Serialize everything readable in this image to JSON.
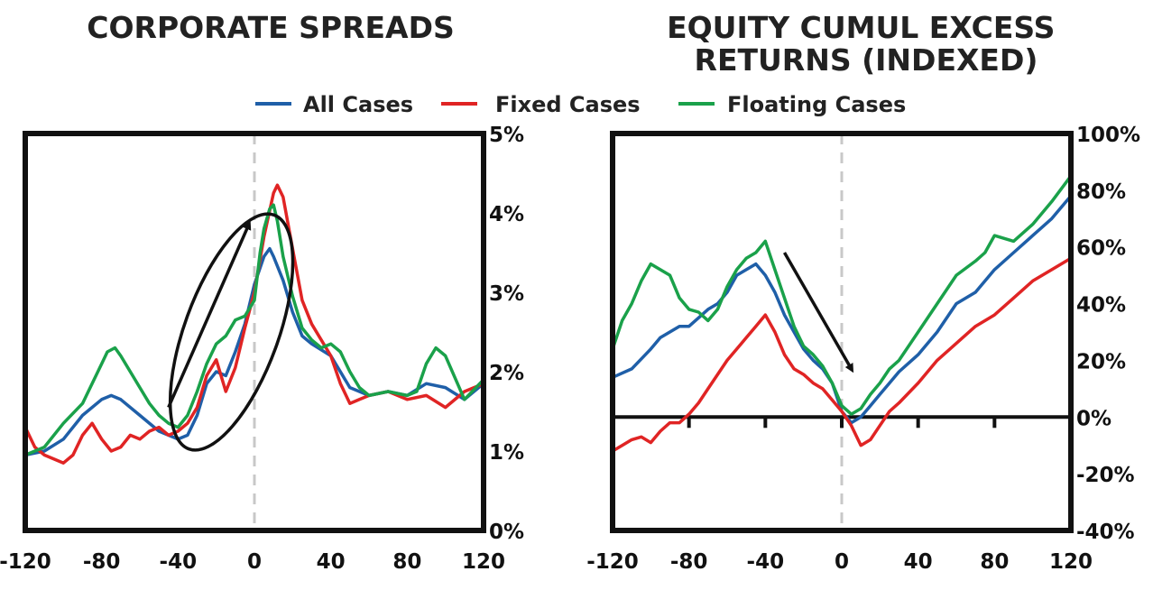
{
  "legend": [
    {
      "name": "All Cases",
      "color": "#1f5fa8"
    },
    {
      "name": "Fixed Cases",
      "color": "#e02424"
    },
    {
      "name": "Floating Cases",
      "color": "#1aa14a"
    }
  ],
  "chart_data": [
    {
      "type": "line",
      "title": "CORPORATE SPREADS",
      "xlim": [
        -120,
        120
      ],
      "ylim": [
        0,
        5
      ],
      "x_ticks": [
        "-120",
        "-80",
        "-40",
        "0",
        "40",
        "80",
        "120"
      ],
      "y_ticks": [
        "0%",
        "1%",
        "2%",
        "3%",
        "4%",
        "5%"
      ],
      "y_axis_side": "right",
      "reference_line_x": 0,
      "series": [
        {
          "name": "All Cases",
          "color": "#1f5fa8",
          "x": [
            -120,
            -110,
            -100,
            -90,
            -80,
            -75,
            -70,
            -60,
            -50,
            -40,
            -35,
            -30,
            -25,
            -20,
            -15,
            -10,
            -5,
            0,
            5,
            8,
            10,
            15,
            20,
            25,
            30,
            40,
            50,
            60,
            70,
            80,
            90,
            100,
            110,
            120
          ],
          "y": [
            0.95,
            1.0,
            1.15,
            1.45,
            1.65,
            1.7,
            1.65,
            1.45,
            1.25,
            1.15,
            1.2,
            1.45,
            1.85,
            2.0,
            1.95,
            2.25,
            2.6,
            3.1,
            3.45,
            3.55,
            3.45,
            3.15,
            2.75,
            2.45,
            2.35,
            2.2,
            1.8,
            1.7,
            1.75,
            1.7,
            1.85,
            1.8,
            1.65,
            1.85
          ]
        },
        {
          "name": "Fixed Cases",
          "color": "#e02424",
          "x": [
            -120,
            -115,
            -110,
            -100,
            -95,
            -90,
            -85,
            -80,
            -75,
            -70,
            -65,
            -60,
            -55,
            -50,
            -45,
            -40,
            -35,
            -30,
            -25,
            -20,
            -15,
            -10,
            -5,
            0,
            5,
            10,
            12,
            15,
            20,
            25,
            30,
            35,
            40,
            45,
            50,
            55,
            60,
            70,
            80,
            90,
            100,
            110,
            120
          ],
          "y": [
            1.3,
            1.05,
            0.95,
            0.85,
            0.95,
            1.2,
            1.35,
            1.15,
            1.0,
            1.05,
            1.2,
            1.15,
            1.25,
            1.3,
            1.2,
            1.25,
            1.35,
            1.55,
            1.95,
            2.15,
            1.75,
            2.05,
            2.55,
            3.0,
            3.7,
            4.25,
            4.35,
            4.2,
            3.55,
            2.9,
            2.6,
            2.4,
            2.2,
            1.85,
            1.6,
            1.65,
            1.7,
            1.75,
            1.65,
            1.7,
            1.55,
            1.75,
            1.85
          ]
        },
        {
          "name": "Floating Cases",
          "color": "#1aa14a",
          "x": [
            -120,
            -110,
            -100,
            -90,
            -85,
            -80,
            -77,
            -73,
            -70,
            -65,
            -60,
            -55,
            -50,
            -45,
            -40,
            -35,
            -30,
            -25,
            -20,
            -15,
            -10,
            -5,
            0,
            3,
            5,
            8,
            10,
            12,
            15,
            20,
            25,
            30,
            35,
            40,
            45,
            50,
            55,
            60,
            70,
            80,
            85,
            90,
            95,
            100,
            110,
            120
          ],
          "y": [
            0.95,
            1.05,
            1.35,
            1.6,
            1.85,
            2.1,
            2.25,
            2.3,
            2.2,
            2.0,
            1.8,
            1.6,
            1.45,
            1.35,
            1.3,
            1.45,
            1.75,
            2.1,
            2.35,
            2.45,
            2.65,
            2.7,
            2.9,
            3.5,
            3.8,
            4.05,
            4.1,
            3.9,
            3.45,
            2.95,
            2.55,
            2.4,
            2.3,
            2.35,
            2.25,
            2.0,
            1.8,
            1.7,
            1.75,
            1.7,
            1.75,
            2.1,
            2.3,
            2.2,
            1.65,
            1.9
          ]
        }
      ],
      "annotations": [
        "ellipse around spread rise",
        "up-right arrow"
      ]
    },
    {
      "type": "line",
      "title": "EQUITY CUMUL EXCESS RETURNS (INDEXED)",
      "xlim": [
        -120,
        120
      ],
      "ylim": [
        -40,
        100
      ],
      "x_ticks": [
        "-120",
        "-80",
        "-40",
        "0",
        "40",
        "80",
        "120"
      ],
      "y_ticks": [
        "-40%",
        "-20%",
        "0%",
        "20%",
        "40%",
        "60%",
        "80%",
        "100%"
      ],
      "y_axis_side": "right",
      "reference_line_x": 0,
      "zero_line": true,
      "series": [
        {
          "name": "All Cases",
          "color": "#1f5fa8",
          "x": [
            -120,
            -110,
            -100,
            -95,
            -90,
            -85,
            -80,
            -75,
            -70,
            -65,
            -60,
            -55,
            -50,
            -45,
            -40,
            -35,
            -30,
            -25,
            -20,
            -15,
            -10,
            -5,
            0,
            5,
            10,
            15,
            20,
            25,
            30,
            40,
            50,
            60,
            70,
            80,
            90,
            100,
            110,
            120
          ],
          "y": [
            14,
            17,
            24,
            28,
            30,
            32,
            32,
            35,
            38,
            40,
            44,
            50,
            52,
            54,
            50,
            44,
            36,
            30,
            24,
            20,
            17,
            12,
            2,
            -2,
            0,
            4,
            8,
            12,
            16,
            22,
            30,
            40,
            44,
            52,
            58,
            64,
            70,
            78
          ]
        },
        {
          "name": "Fixed Cases",
          "color": "#e02424",
          "x": [
            -120,
            -115,
            -110,
            -105,
            -100,
            -95,
            -90,
            -85,
            -80,
            -75,
            -70,
            -65,
            -60,
            -55,
            -50,
            -45,
            -40,
            -35,
            -30,
            -25,
            -20,
            -15,
            -10,
            -5,
            0,
            5,
            10,
            15,
            20,
            25,
            30,
            40,
            50,
            60,
            70,
            80,
            90,
            100,
            110,
            120
          ],
          "y": [
            -12,
            -10,
            -8,
            -7,
            -9,
            -5,
            -2,
            -2,
            1,
            5,
            10,
            15,
            20,
            24,
            28,
            32,
            36,
            30,
            22,
            17,
            15,
            12,
            10,
            6,
            2,
            -3,
            -10,
            -8,
            -3,
            2,
            5,
            12,
            20,
            26,
            32,
            36,
            42,
            48,
            52,
            56
          ]
        },
        {
          "name": "Floating Cases",
          "color": "#1aa14a",
          "x": [
            -120,
            -115,
            -110,
            -105,
            -100,
            -95,
            -90,
            -85,
            -80,
            -75,
            -70,
            -65,
            -60,
            -55,
            -50,
            -45,
            -40,
            -35,
            -30,
            -25,
            -20,
            -15,
            -10,
            -5,
            0,
            5,
            10,
            15,
            20,
            25,
            30,
            40,
            50,
            60,
            70,
            75,
            80,
            90,
            100,
            110,
            120
          ],
          "y": [
            24,
            34,
            40,
            48,
            54,
            52,
            50,
            42,
            38,
            37,
            34,
            38,
            46,
            52,
            56,
            58,
            62,
            52,
            42,
            32,
            25,
            22,
            18,
            12,
            4,
            1,
            3,
            8,
            12,
            17,
            20,
            30,
            40,
            50,
            55,
            58,
            64,
            62,
            68,
            76,
            85
          ]
        }
      ],
      "annotations": [
        "down-right arrow"
      ]
    }
  ]
}
